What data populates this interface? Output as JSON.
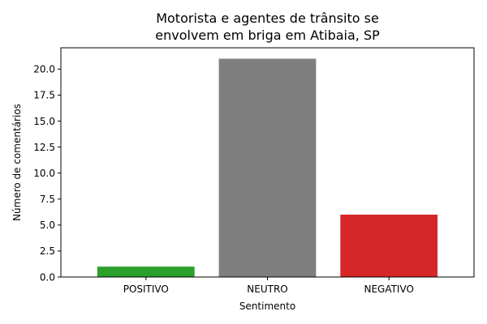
{
  "chart_data": {
    "type": "bar",
    "title": "Motorista e agentes de trânsito se envolvem em briga em Atibaia, SP",
    "title_lines": [
      "Motorista e agentes de trânsito se",
      "envolvem em briga em Atibaia, SP"
    ],
    "xlabel": "Sentimento",
    "ylabel": "Número de comentários",
    "categories": [
      "POSITIVO",
      "NEUTRO",
      "NEGATIVO"
    ],
    "values": [
      1,
      21,
      6
    ],
    "colors": [
      "#2ca02c",
      "#7f7f7f",
      "#d62728"
    ],
    "ylim": [
      0,
      22.05
    ],
    "yticks": [
      0.0,
      2.5,
      5.0,
      7.5,
      10.0,
      12.5,
      15.0,
      17.5,
      20.0
    ],
    "ytick_labels": [
      "0.0",
      "2.5",
      "5.0",
      "7.5",
      "10.0",
      "12.5",
      "15.0",
      "17.5",
      "20.0"
    ],
    "grid": false,
    "legend": "none"
  }
}
